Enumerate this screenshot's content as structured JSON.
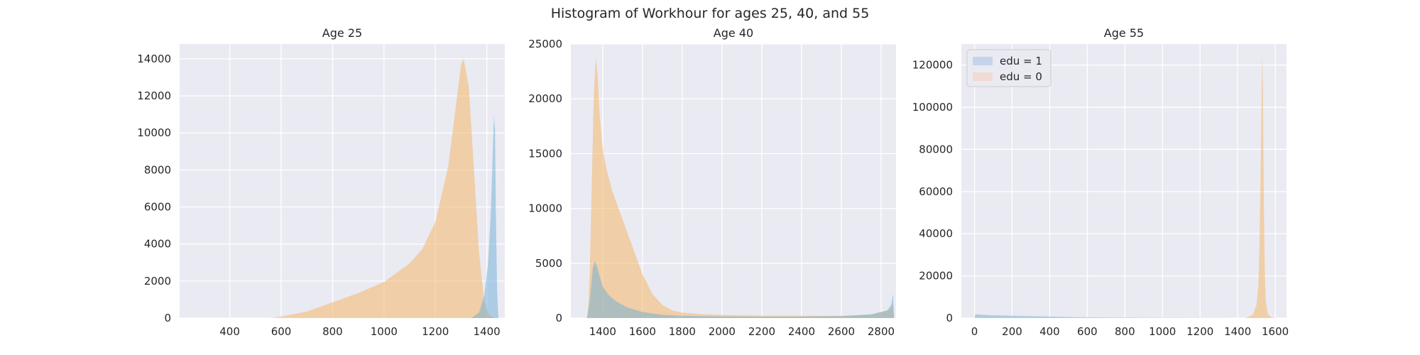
{
  "title": "Histogram of Workhour for ages 25, 40, and 55",
  "colors": {
    "background": "#eaeaf2",
    "grid": "#ffffff",
    "edu1": "#6baed6",
    "edu0": "#f5b25c"
  },
  "legend": {
    "placement": "upper-left",
    "panel": 2,
    "entries": [
      {
        "label": "edu = 1",
        "color": "#c6d4ea"
      },
      {
        "label": "edu = 0",
        "color": "#f1dbd2"
      }
    ]
  },
  "chart_data": [
    {
      "type": "area",
      "title": "Age 25",
      "xlim": [
        205,
        1470
      ],
      "ylim": [
        0,
        14800
      ],
      "xticks": [
        400,
        600,
        800,
        1000,
        1200,
        1400
      ],
      "yticks": [
        0,
        2000,
        4000,
        6000,
        8000,
        10000,
        12000,
        14000
      ],
      "grid": true,
      "series": [
        {
          "name": "edu = 0",
          "color": "#f5b25c",
          "x": [
            560,
            600,
            700,
            800,
            900,
            1000,
            1100,
            1150,
            1200,
            1250,
            1280,
            1300,
            1310,
            1330,
            1350,
            1370,
            1390,
            1410,
            1430
          ],
          "values": [
            0,
            80,
            350,
            850,
            1350,
            1950,
            2950,
            3750,
            5200,
            8200,
            11500,
            13700,
            14000,
            12500,
            8000,
            3500,
            900,
            150,
            0
          ]
        },
        {
          "name": "edu = 1",
          "color": "#6baed6",
          "x": [
            1340,
            1370,
            1390,
            1405,
            1415,
            1420,
            1425,
            1428,
            1432,
            1435,
            1440,
            1445
          ],
          "values": [
            0,
            300,
            1200,
            3000,
            5500,
            7500,
            9800,
            10900,
            10200,
            6000,
            1500,
            0
          ]
        }
      ]
    },
    {
      "type": "area",
      "title": "Age 40",
      "xlim": [
        1240,
        2875
      ],
      "ylim": [
        0,
        25000
      ],
      "xticks": [
        1400,
        1600,
        1800,
        2000,
        2200,
        2400,
        2600,
        2800
      ],
      "yticks": [
        0,
        5000,
        10000,
        15000,
        20000,
        25000
      ],
      "grid": true,
      "series": [
        {
          "name": "edu = 0",
          "color": "#f5b25c",
          "x": [
            1325,
            1335,
            1345,
            1355,
            1365,
            1375,
            1385,
            1400,
            1420,
            1450,
            1500,
            1550,
            1600,
            1650,
            1700,
            1750,
            1800,
            1900,
            2000,
            2200,
            2400,
            2600,
            2750,
            2840,
            2860,
            2865
          ],
          "values": [
            0,
            4000,
            12000,
            20000,
            23800,
            22000,
            18500,
            15500,
            13500,
            11500,
            9000,
            6500,
            4000,
            2200,
            1200,
            700,
            500,
            350,
            280,
            220,
            200,
            200,
            300,
            700,
            1200,
            0
          ]
        },
        {
          "name": "edu = 1",
          "color": "#6baed6",
          "x": [
            1320,
            1335,
            1350,
            1360,
            1370,
            1385,
            1400,
            1430,
            1470,
            1520,
            1600,
            1700,
            1800,
            2000,
            2200,
            2400,
            2600,
            2750,
            2830,
            2850,
            2860,
            2865
          ],
          "values": [
            0,
            1500,
            4500,
            5200,
            4800,
            3800,
            2900,
            2100,
            1500,
            1000,
            550,
            300,
            200,
            150,
            130,
            140,
            180,
            350,
            700,
            1200,
            2200,
            0
          ]
        }
      ]
    },
    {
      "type": "area",
      "title": "Age 55",
      "xlim": [
        -70,
        1660
      ],
      "ylim": [
        0,
        130000
      ],
      "xticks": [
        0,
        200,
        400,
        600,
        800,
        1000,
        1200,
        1400,
        1600
      ],
      "yticks": [
        0,
        20000,
        40000,
        60000,
        80000,
        100000,
        120000
      ],
      "grid": true,
      "series": [
        {
          "name": "edu = 0",
          "color": "#f5b25c",
          "x": [
            1440,
            1480,
            1500,
            1510,
            1515,
            1520,
            1525,
            1528,
            1531,
            1534,
            1537,
            1540,
            1545,
            1550,
            1560,
            1580,
            1600
          ],
          "values": [
            0,
            1500,
            6000,
            15000,
            30000,
            55000,
            85000,
            110000,
            125000,
            110000,
            80000,
            50000,
            20000,
            8000,
            2000,
            300,
            0
          ]
        },
        {
          "name": "edu = 1",
          "color": "#6baed6",
          "x": [
            0,
            5,
            50,
            100,
            200,
            300,
            400,
            500,
            600,
            800,
            1000,
            1200,
            1400
          ],
          "values": [
            0,
            1800,
            1500,
            1300,
            1100,
            900,
            700,
            500,
            350,
            200,
            120,
            80,
            0
          ]
        }
      ]
    }
  ]
}
